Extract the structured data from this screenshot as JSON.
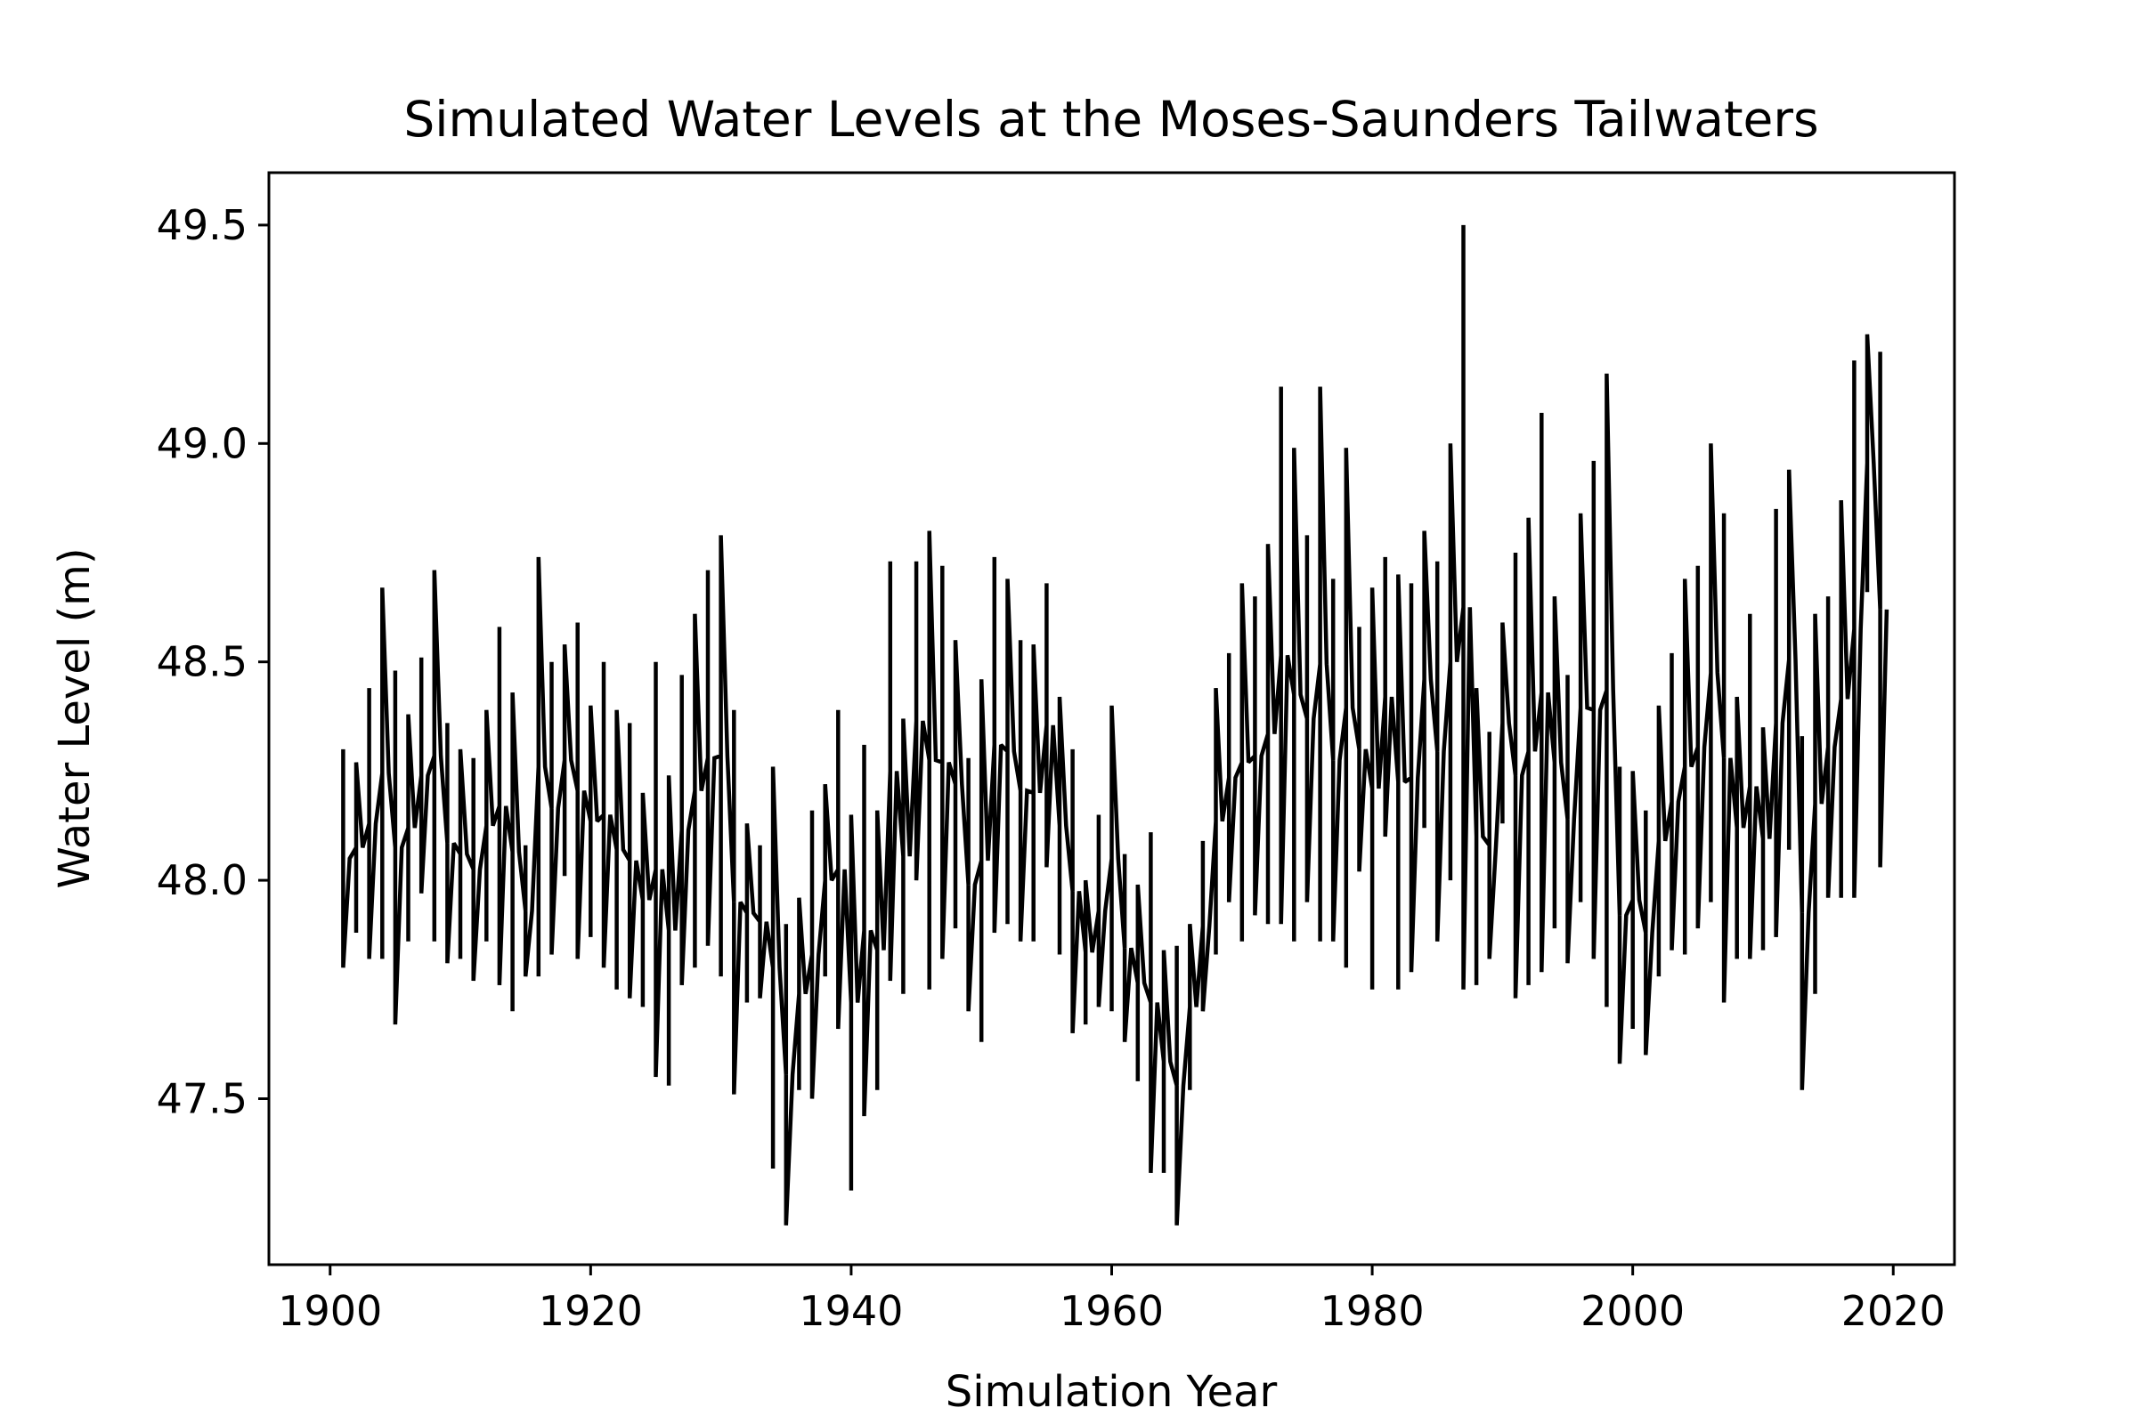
{
  "chart_data": {
    "type": "line",
    "title": "Simulated Water Levels at the Moses-Saunders Tailwaters",
    "xlabel": "Simulation Year",
    "ylabel": "Water Level (m)",
    "xlim": [
      1895.3,
      2024.7
    ],
    "ylim": [
      47.12,
      49.62
    ],
    "xticks": [
      1900,
      1920,
      1940,
      1960,
      1980,
      2000,
      2020
    ],
    "yticks": [
      47.5,
      48.0,
      48.5,
      49.0,
      49.5
    ],
    "xtick_labels": [
      "1900",
      "1920",
      "1940",
      "1960",
      "1980",
      "2000",
      "2020"
    ],
    "ytick_labels": [
      "47.5",
      "48.0",
      "48.5",
      "49.0",
      "49.5"
    ],
    "grid": false,
    "legend": "none",
    "line_color": "#000000",
    "series": [
      {
        "year_range": [
          1901,
          2019
        ],
        "annual_min": [
          47.8,
          47.88,
          47.82,
          47.82,
          47.67,
          47.86,
          47.97,
          47.86,
          47.81,
          47.82,
          47.77,
          47.86,
          47.76,
          47.7,
          47.78,
          47.78,
          47.83,
          48.01,
          47.82,
          47.87,
          47.8,
          47.75,
          47.73,
          47.71,
          47.55,
          47.53,
          47.76,
          47.8,
          47.85,
          47.78,
          47.51,
          47.72,
          47.73,
          47.34,
          47.21,
          47.52,
          47.5,
          47.78,
          47.66,
          47.29,
          47.46,
          47.52,
          47.77,
          47.74,
          48.0,
          47.75,
          47.82,
          47.89,
          47.7,
          47.63,
          47.88,
          47.9,
          47.86,
          47.86,
          48.03,
          47.83,
          47.65,
          47.67,
          47.71,
          47.7,
          47.63,
          47.54,
          47.33,
          47.33,
          47.21,
          47.52,
          47.7,
          47.83,
          47.95,
          47.86,
          47.92,
          47.9,
          47.9,
          47.86,
          47.95,
          47.86,
          47.86,
          47.8,
          48.02,
          47.75,
          48.1,
          47.75,
          47.79,
          48.12,
          47.86,
          48.0,
          47.75,
          47.76,
          47.82,
          48.13,
          47.73,
          47.76,
          47.79,
          47.89,
          47.81,
          47.95,
          47.82,
          47.71,
          47.58,
          47.66,
          47.6,
          47.78,
          47.84,
          47.83,
          47.89,
          47.95,
          47.72,
          47.82,
          47.82,
          47.84,
          47.87,
          48.07,
          47.52,
          47.74,
          47.96,
          47.96,
          47.96,
          48.66,
          48.03
        ],
        "annual_max": [
          48.3,
          48.27,
          48.44,
          48.67,
          48.48,
          48.38,
          48.51,
          48.71,
          48.36,
          48.3,
          48.28,
          48.39,
          48.58,
          48.43,
          48.08,
          48.74,
          48.5,
          48.54,
          48.59,
          48.4,
          48.5,
          48.39,
          48.36,
          48.2,
          48.5,
          48.24,
          48.47,
          48.61,
          48.71,
          48.79,
          48.39,
          48.13,
          48.08,
          48.26,
          47.9,
          47.96,
          48.16,
          48.22,
          48.39,
          48.15,
          48.31,
          48.16,
          48.73,
          48.37,
          48.73,
          48.8,
          48.72,
          48.55,
          48.28,
          48.46,
          48.74,
          48.69,
          48.55,
          48.54,
          48.68,
          48.42,
          48.3,
          48.0,
          48.15,
          48.4,
          48.06,
          47.99,
          48.11,
          47.84,
          47.85,
          47.9,
          48.09,
          48.44,
          48.52,
          48.68,
          48.65,
          48.77,
          49.13,
          48.99,
          48.79,
          49.13,
          48.69,
          48.99,
          48.58,
          48.67,
          48.74,
          48.7,
          48.68,
          48.8,
          48.73,
          49.0,
          49.5,
          48.44,
          48.34,
          48.59,
          48.75,
          48.83,
          49.07,
          48.65,
          48.47,
          48.84,
          48.96,
          49.16,
          48.26,
          48.25,
          48.16,
          48.4,
          48.52,
          48.69,
          48.72,
          49.0,
          48.84,
          48.42,
          48.61,
          48.35,
          48.85,
          48.94,
          48.33,
          48.61,
          48.65,
          48.87,
          49.19,
          49.25,
          49.21
        ]
      }
    ]
  }
}
